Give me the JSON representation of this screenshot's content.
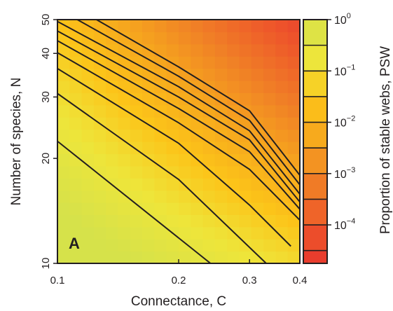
{
  "chart_data": {
    "type": "heatmap",
    "panel_label": "A",
    "xlabel": "Connectance, C",
    "ylabel": "Number of species, N",
    "colorbar_label": "Proportion of stable webs, PSW",
    "x_scale": "log",
    "y_scale": "log",
    "xlim": [
      0.1,
      0.4
    ],
    "ylim": [
      10,
      50
    ],
    "x_ticks": [
      {
        "value": 0.1,
        "label": "0.1"
      },
      {
        "value": 0.2,
        "label": "0.2"
      },
      {
        "value": 0.3,
        "label": "0.3"
      },
      {
        "value": 0.4,
        "label": "0.4"
      }
    ],
    "y_ticks": [
      {
        "value": 10,
        "label": "10"
      },
      {
        "value": 20,
        "label": "20"
      },
      {
        "value": 30,
        "label": "30"
      },
      {
        "value": 40,
        "label": "40"
      },
      {
        "value": 50,
        "label": "50"
      }
    ],
    "colorbar": {
      "scale": "log",
      "range_log10": [
        -4.75,
        0
      ],
      "ticks": [
        {
          "exp": 0,
          "base": "10",
          "sup": "0"
        },
        {
          "exp": -1,
          "base": "10",
          "sup": "−1"
        },
        {
          "exp": -2,
          "base": "10",
          "sup": "−2"
        },
        {
          "exp": -3,
          "base": "10",
          "sup": "−3"
        },
        {
          "exp": -4,
          "base": "10",
          "sup": "−4"
        }
      ],
      "colors": [
        "#e8382e",
        "#ee5a2a",
        "#f07f26",
        "#f6a51e",
        "#fcc419",
        "#eee53a",
        "#d6e24a"
      ]
    },
    "contour_levels_log10": [
      -0.5,
      -1,
      -1.5,
      -2,
      -2.5,
      -3,
      -3.5,
      -4,
      -4.5
    ],
    "contour_lines": [
      {
        "level_log10": -0.5,
        "points": [
          [
            0.1,
            22.4
          ],
          [
            0.24,
            10
          ]
        ]
      },
      {
        "level_log10": -1,
        "points": [
          [
            0.1,
            30.7
          ],
          [
            0.2,
            17.4
          ],
          [
            0.33,
            10
          ]
        ]
      },
      {
        "level_log10": -1.5,
        "points": [
          [
            0.1,
            36.2
          ],
          [
            0.2,
            22.1
          ],
          [
            0.3,
            14.7
          ],
          [
            0.38,
            11.2
          ]
        ]
      },
      {
        "level_log10": -2,
        "points": [
          [
            0.1,
            40.2
          ],
          [
            0.2,
            25.3
          ],
          [
            0.3,
            18.6
          ],
          [
            0.4,
            13.3
          ]
        ]
      },
      {
        "level_log10": -2.5,
        "points": [
          [
            0.1,
            43.5
          ],
          [
            0.2,
            27.8
          ],
          [
            0.3,
            20.9
          ],
          [
            0.4,
            14.3
          ]
        ]
      },
      {
        "level_log10": -3,
        "points": [
          [
            0.1,
            46.4
          ],
          [
            0.2,
            30.0
          ],
          [
            0.3,
            22.6
          ],
          [
            0.4,
            15.0
          ]
        ]
      },
      {
        "level_log10": -3.5,
        "points": [
          [
            0.1,
            49.4
          ],
          [
            0.2,
            32.1
          ],
          [
            0.3,
            24.0
          ],
          [
            0.4,
            15.8
          ]
        ]
      },
      {
        "level_log10": -4,
        "points": [
          [
            0.112,
            50
          ],
          [
            0.2,
            34.4
          ],
          [
            0.3,
            25.7
          ],
          [
            0.4,
            16.8
          ]
        ]
      },
      {
        "level_log10": -4.5,
        "points": [
          [
            0.125,
            50
          ],
          [
            0.2,
            36.6
          ],
          [
            0.3,
            27.4
          ],
          [
            0.4,
            17.9
          ]
        ]
      }
    ]
  }
}
